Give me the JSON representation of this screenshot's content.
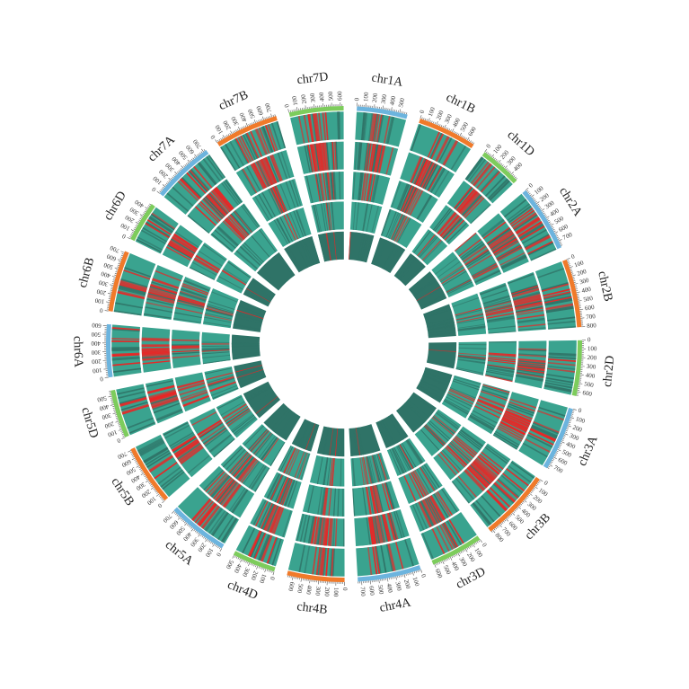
{
  "chart_data": {
    "type": "circos",
    "title": "",
    "tracks": 5,
    "heat_colors": {
      "low": "#2f7367",
      "mid": "#3aa38f",
      "high": "#ee2222"
    },
    "colors": {
      "A": "#6cb4de",
      "B": "#f07a2a",
      "D": "#7dcc5c",
      "divider": "#ffffff"
    },
    "chromosomes": [
      {
        "name": "chr1A",
        "length": 594,
        "subgenome": "A",
        "ticks": [
          0,
          100,
          200,
          300,
          400,
          500
        ]
      },
      {
        "name": "chr1B",
        "length": 689,
        "subgenome": "B",
        "ticks": [
          0,
          100,
          200,
          300,
          400,
          500,
          600
        ]
      },
      {
        "name": "chr1D",
        "length": 495,
        "subgenome": "D",
        "ticks": [
          0,
          100,
          200,
          300,
          400
        ]
      },
      {
        "name": "chr2A",
        "length": 780,
        "subgenome": "A",
        "ticks": [
          0,
          100,
          200,
          300,
          400,
          500,
          600,
          700
        ]
      },
      {
        "name": "chr2B",
        "length": 801,
        "subgenome": "B",
        "ticks": [
          0,
          100,
          200,
          300,
          400,
          500,
          600,
          700,
          800
        ]
      },
      {
        "name": "chr2D",
        "length": 651,
        "subgenome": "D",
        "ticks": [
          0,
          100,
          200,
          300,
          400,
          500,
          600
        ]
      },
      {
        "name": "chr3A",
        "length": 750,
        "subgenome": "A",
        "ticks": [
          0,
          100,
          200,
          300,
          400,
          500,
          600,
          700
        ]
      },
      {
        "name": "chr3B",
        "length": 830,
        "subgenome": "B",
        "ticks": [
          0,
          100,
          200,
          300,
          400,
          500,
          600,
          700,
          800
        ]
      },
      {
        "name": "chr3D",
        "length": 615,
        "subgenome": "D",
        "ticks": [
          0,
          100,
          200,
          300,
          400,
          500,
          600
        ]
      },
      {
        "name": "chr4A",
        "length": 744,
        "subgenome": "A",
        "ticks": [
          0,
          100,
          200,
          300,
          400,
          500,
          600,
          700
        ]
      },
      {
        "name": "chr4B",
        "length": 673,
        "subgenome": "B",
        "ticks": [
          0,
          100,
          200,
          300,
          400,
          500,
          600
        ]
      },
      {
        "name": "chr4D",
        "length": 509,
        "subgenome": "D",
        "ticks": [
          0,
          100,
          200,
          300,
          400,
          500
        ]
      },
      {
        "name": "chr5A",
        "length": 709,
        "subgenome": "A",
        "ticks": [
          0,
          100,
          200,
          300,
          400,
          500,
          600,
          700
        ]
      },
      {
        "name": "chr5B",
        "length": 713,
        "subgenome": "B",
        "ticks": [
          0,
          100,
          200,
          300,
          400,
          500,
          600,
          700
        ]
      },
      {
        "name": "chr5D",
        "length": 566,
        "subgenome": "D",
        "ticks": [
          0,
          100,
          200,
          300,
          400,
          500
        ]
      },
      {
        "name": "chr6A",
        "length": 618,
        "subgenome": "A",
        "ticks": [
          0,
          100,
          200,
          300,
          400,
          500,
          600
        ]
      },
      {
        "name": "chr6B",
        "length": 720,
        "subgenome": "B",
        "ticks": [
          0,
          100,
          200,
          300,
          400,
          500,
          600,
          700
        ]
      },
      {
        "name": "chr6D",
        "length": 473,
        "subgenome": "D",
        "ticks": [
          0,
          100,
          200,
          300,
          400
        ]
      },
      {
        "name": "chr7A",
        "length": 736,
        "subgenome": "A",
        "ticks": [
          0,
          100,
          200,
          300,
          400,
          500,
          600,
          700
        ]
      },
      {
        "name": "chr7B",
        "length": 750,
        "subgenome": "B",
        "ticks": [
          0,
          100,
          200,
          300,
          400,
          500,
          600,
          700
        ]
      },
      {
        "name": "chr7D",
        "length": 638,
        "subgenome": "D",
        "ticks": [
          0,
          100,
          200,
          300,
          400,
          500,
          600
        ]
      }
    ]
  }
}
